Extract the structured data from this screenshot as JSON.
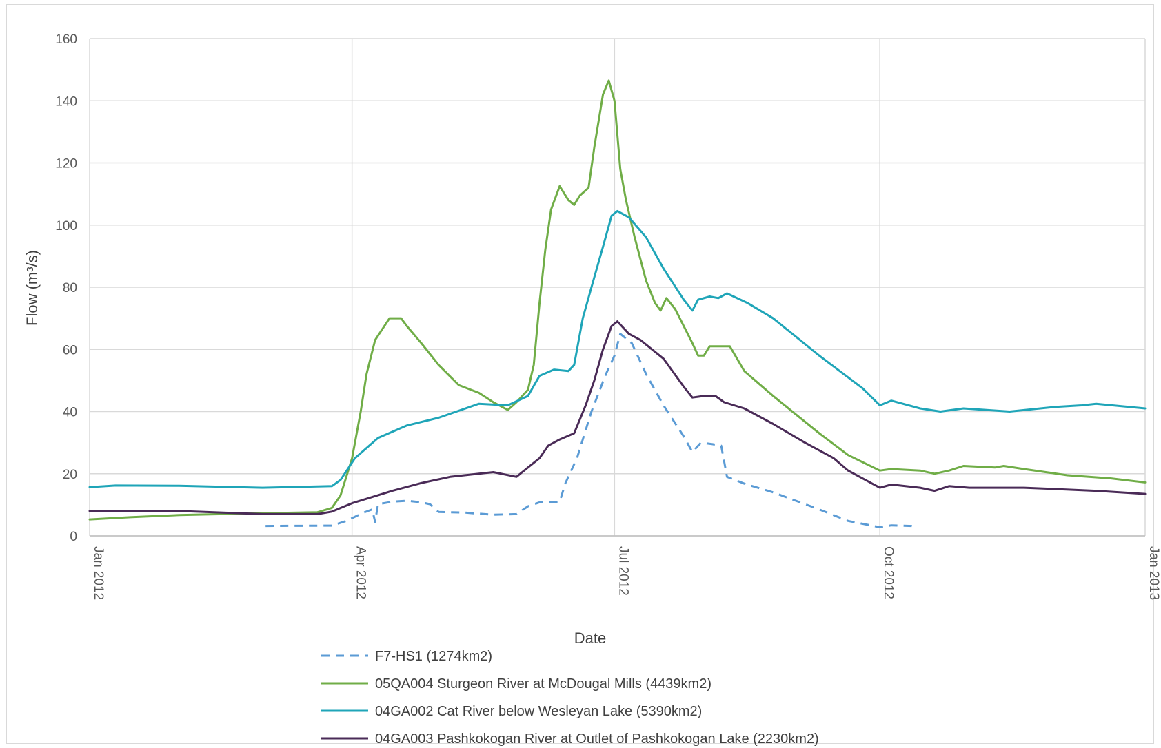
{
  "chart_data": {
    "type": "line",
    "title": "",
    "xlabel": "Date",
    "ylabel": "Flow (m³/s)",
    "ylim": [
      0,
      160
    ],
    "yticks": [
      "0",
      "20",
      "40",
      "60",
      "80",
      "100",
      "120",
      "140",
      "160"
    ],
    "xlim": [
      "2012-01-01",
      "2013-01-01"
    ],
    "xticks": [
      {
        "date": "2012-01-01",
        "label": "Jan 2012"
      },
      {
        "date": "2012-04-01",
        "label": "Apr 2012"
      },
      {
        "date": "2012-07-01",
        "label": "Jul 2012"
      },
      {
        "date": "2012-10-01",
        "label": "Oct 2012"
      },
      {
        "date": "2013-01-01",
        "label": "Jan 2013"
      }
    ],
    "grid": true,
    "legend_position": "bottom",
    "series": [
      {
        "name": "F7-HS1 (1274km2)",
        "color": "#5b9bd5",
        "dash": true,
        "points": [
          [
            "2012-03-02",
            3.2
          ],
          [
            "2012-03-25",
            3.3
          ],
          [
            "2012-03-30",
            4.8
          ],
          [
            "2012-04-05",
            7.5
          ],
          [
            "2012-04-08",
            8.5
          ],
          [
            "2012-04-09",
            4.5
          ],
          [
            "2012-04-10",
            10.2
          ],
          [
            "2012-04-15",
            11.0
          ],
          [
            "2012-04-20",
            11.3
          ],
          [
            "2012-04-25",
            10.8
          ],
          [
            "2012-04-28",
            10.2
          ],
          [
            "2012-05-01",
            7.7
          ],
          [
            "2012-05-10",
            7.5
          ],
          [
            "2012-05-20",
            6.8
          ],
          [
            "2012-05-28",
            7.0
          ],
          [
            "2012-06-01",
            9.5
          ],
          [
            "2012-06-05",
            10.8
          ],
          [
            "2012-06-12",
            11.0
          ],
          [
            "2012-06-14",
            17.0
          ],
          [
            "2012-06-18",
            25.0
          ],
          [
            "2012-06-23",
            40.0
          ],
          [
            "2012-06-28",
            52.0
          ],
          [
            "2012-07-01",
            58.0
          ],
          [
            "2012-07-03",
            65.0
          ],
          [
            "2012-07-07",
            62.0
          ],
          [
            "2012-07-12",
            52.0
          ],
          [
            "2012-07-18",
            42.0
          ],
          [
            "2012-07-25",
            32.0
          ],
          [
            "2012-07-28",
            27.0
          ],
          [
            "2012-07-31",
            30.0
          ],
          [
            "2012-08-04",
            29.5
          ],
          [
            "2012-08-07",
            29.0
          ],
          [
            "2012-08-09",
            19.0
          ],
          [
            "2012-08-15",
            16.8
          ],
          [
            "2012-08-25",
            14.0
          ],
          [
            "2012-09-10",
            8.5
          ],
          [
            "2012-09-20",
            4.8
          ],
          [
            "2012-10-01",
            2.8
          ],
          [
            "2012-10-05",
            3.4
          ],
          [
            "2012-10-12",
            3.2
          ],
          [
            "2012-10-14",
            2.8
          ]
        ]
      },
      {
        "name": "05QA004 Sturgeon River at McDougal Mills (4439km2)",
        "color": "#70ad47",
        "dash": false,
        "points": [
          [
            "2012-01-01",
            5.3
          ],
          [
            "2012-01-15",
            6.0
          ],
          [
            "2012-02-01",
            6.7
          ],
          [
            "2012-03-01",
            7.3
          ],
          [
            "2012-03-20",
            7.6
          ],
          [
            "2012-03-25",
            9.0
          ],
          [
            "2012-03-28",
            13.0
          ],
          [
            "2012-04-01",
            25.0
          ],
          [
            "2012-04-04",
            40.0
          ],
          [
            "2012-04-06",
            52.0
          ],
          [
            "2012-04-09",
            63.0
          ],
          [
            "2012-04-14",
            70.0
          ],
          [
            "2012-04-18",
            70.0
          ],
          [
            "2012-04-20",
            67.5
          ],
          [
            "2012-04-25",
            62.0
          ],
          [
            "2012-05-01",
            55.0
          ],
          [
            "2012-05-08",
            48.5
          ],
          [
            "2012-05-15",
            46.0
          ],
          [
            "2012-05-20",
            43.0
          ],
          [
            "2012-05-25",
            40.5
          ],
          [
            "2012-05-28",
            43.0
          ],
          [
            "2012-06-01",
            47.0
          ],
          [
            "2012-06-03",
            55.0
          ],
          [
            "2012-06-05",
            75.0
          ],
          [
            "2012-06-07",
            92.0
          ],
          [
            "2012-06-09",
            105.0
          ],
          [
            "2012-06-12",
            112.5
          ],
          [
            "2012-06-15",
            108.0
          ],
          [
            "2012-06-17",
            106.5
          ],
          [
            "2012-06-19",
            109.5
          ],
          [
            "2012-06-22",
            112.0
          ],
          [
            "2012-06-24",
            125.0
          ],
          [
            "2012-06-27",
            142.0
          ],
          [
            "2012-06-29",
            146.5
          ],
          [
            "2012-07-01",
            140.0
          ],
          [
            "2012-07-03",
            118.0
          ],
          [
            "2012-07-05",
            108.0
          ],
          [
            "2012-07-08",
            96.0
          ],
          [
            "2012-07-12",
            82.0
          ],
          [
            "2012-07-15",
            75.0
          ],
          [
            "2012-07-17",
            72.5
          ],
          [
            "2012-07-19",
            76.5
          ],
          [
            "2012-07-22",
            73.0
          ],
          [
            "2012-07-28",
            62.0
          ],
          [
            "2012-07-30",
            58.0
          ],
          [
            "2012-08-01",
            58.0
          ],
          [
            "2012-08-03",
            61.0
          ],
          [
            "2012-08-10",
            61.0
          ],
          [
            "2012-08-15",
            53.0
          ],
          [
            "2012-08-25",
            45.0
          ],
          [
            "2012-09-10",
            33.0
          ],
          [
            "2012-09-20",
            26.0
          ],
          [
            "2012-10-01",
            21.0
          ],
          [
            "2012-10-05",
            21.5
          ],
          [
            "2012-10-15",
            21.0
          ],
          [
            "2012-10-20",
            20.0
          ],
          [
            "2012-10-25",
            21.0
          ],
          [
            "2012-10-30",
            22.5
          ],
          [
            "2012-11-10",
            22.0
          ],
          [
            "2012-11-13",
            22.5
          ],
          [
            "2012-11-20",
            21.5
          ],
          [
            "2012-12-05",
            19.5
          ],
          [
            "2012-12-20",
            18.5
          ],
          [
            "2013-01-01",
            17.2
          ]
        ]
      },
      {
        "name": "04GA002 Cat River below Wesleyan Lake (5390km2)",
        "color": "#1fa5b8",
        "dash": false,
        "points": [
          [
            "2012-01-01",
            15.7
          ],
          [
            "2012-01-10",
            16.2
          ],
          [
            "2012-02-01",
            16.1
          ],
          [
            "2012-03-01",
            15.5
          ],
          [
            "2012-03-25",
            16.0
          ],
          [
            "2012-03-28",
            18.0
          ],
          [
            "2012-04-02",
            25.0
          ],
          [
            "2012-04-10",
            31.5
          ],
          [
            "2012-04-20",
            35.5
          ],
          [
            "2012-05-01",
            38.0
          ],
          [
            "2012-05-15",
            42.5
          ],
          [
            "2012-05-25",
            42.0
          ],
          [
            "2012-06-01",
            45.0
          ],
          [
            "2012-06-05",
            51.5
          ],
          [
            "2012-06-10",
            53.5
          ],
          [
            "2012-06-15",
            53.0
          ],
          [
            "2012-06-17",
            55.0
          ],
          [
            "2012-06-20",
            70.0
          ],
          [
            "2012-06-23",
            80.0
          ],
          [
            "2012-06-27",
            93.0
          ],
          [
            "2012-06-30",
            103.0
          ],
          [
            "2012-07-02",
            104.5
          ],
          [
            "2012-07-06",
            102.5
          ],
          [
            "2012-07-12",
            96.0
          ],
          [
            "2012-07-18",
            86.0
          ],
          [
            "2012-07-25",
            76.0
          ],
          [
            "2012-07-28",
            72.5
          ],
          [
            "2012-07-30",
            76.0
          ],
          [
            "2012-08-03",
            77.0
          ],
          [
            "2012-08-06",
            76.5
          ],
          [
            "2012-08-09",
            78.0
          ],
          [
            "2012-08-16",
            75.0
          ],
          [
            "2012-08-25",
            70.0
          ],
          [
            "2012-09-10",
            58.0
          ],
          [
            "2012-09-25",
            47.5
          ],
          [
            "2012-10-01",
            42.0
          ],
          [
            "2012-10-05",
            43.5
          ],
          [
            "2012-10-15",
            41.0
          ],
          [
            "2012-10-22",
            40.0
          ],
          [
            "2012-10-30",
            41.0
          ],
          [
            "2012-11-15",
            40.0
          ],
          [
            "2012-12-01",
            41.5
          ],
          [
            "2012-12-10",
            42.0
          ],
          [
            "2012-12-15",
            42.5
          ],
          [
            "2013-01-01",
            41.0
          ]
        ]
      },
      {
        "name": "04GA003 Pashkokogan River at Outlet of Pashkokogan Lake (2230km2)",
        "color": "#4a2b57",
        "dash": false,
        "points": [
          [
            "2012-01-01",
            8.0
          ],
          [
            "2012-02-01",
            8.0
          ],
          [
            "2012-03-01",
            7.0
          ],
          [
            "2012-03-20",
            7.0
          ],
          [
            "2012-03-25",
            7.8
          ],
          [
            "2012-04-01",
            10.5
          ],
          [
            "2012-04-15",
            14.5
          ],
          [
            "2012-04-25",
            17.0
          ],
          [
            "2012-05-05",
            19.0
          ],
          [
            "2012-05-15",
            20.0
          ],
          [
            "2012-05-20",
            20.5
          ],
          [
            "2012-05-28",
            19.0
          ],
          [
            "2012-06-05",
            25.0
          ],
          [
            "2012-06-08",
            29.0
          ],
          [
            "2012-06-12",
            31.0
          ],
          [
            "2012-06-17",
            33.0
          ],
          [
            "2012-06-21",
            42.0
          ],
          [
            "2012-06-24",
            50.0
          ],
          [
            "2012-06-27",
            60.0
          ],
          [
            "2012-06-30",
            67.5
          ],
          [
            "2012-07-02",
            69.0
          ],
          [
            "2012-07-06",
            65.0
          ],
          [
            "2012-07-10",
            63.0
          ],
          [
            "2012-07-18",
            57.0
          ],
          [
            "2012-07-25",
            48.0
          ],
          [
            "2012-07-28",
            44.5
          ],
          [
            "2012-08-01",
            45.0
          ],
          [
            "2012-08-05",
            45.0
          ],
          [
            "2012-08-08",
            43.0
          ],
          [
            "2012-08-15",
            41.0
          ],
          [
            "2012-08-25",
            36.0
          ],
          [
            "2012-09-05",
            30.0
          ],
          [
            "2012-09-15",
            25.0
          ],
          [
            "2012-09-20",
            21.0
          ],
          [
            "2012-10-01",
            15.5
          ],
          [
            "2012-10-05",
            16.5
          ],
          [
            "2012-10-15",
            15.5
          ],
          [
            "2012-10-20",
            14.5
          ],
          [
            "2012-10-25",
            16.0
          ],
          [
            "2012-11-01",
            15.5
          ],
          [
            "2012-11-20",
            15.5
          ],
          [
            "2012-12-15",
            14.5
          ],
          [
            "2013-01-01",
            13.5
          ]
        ]
      }
    ]
  }
}
